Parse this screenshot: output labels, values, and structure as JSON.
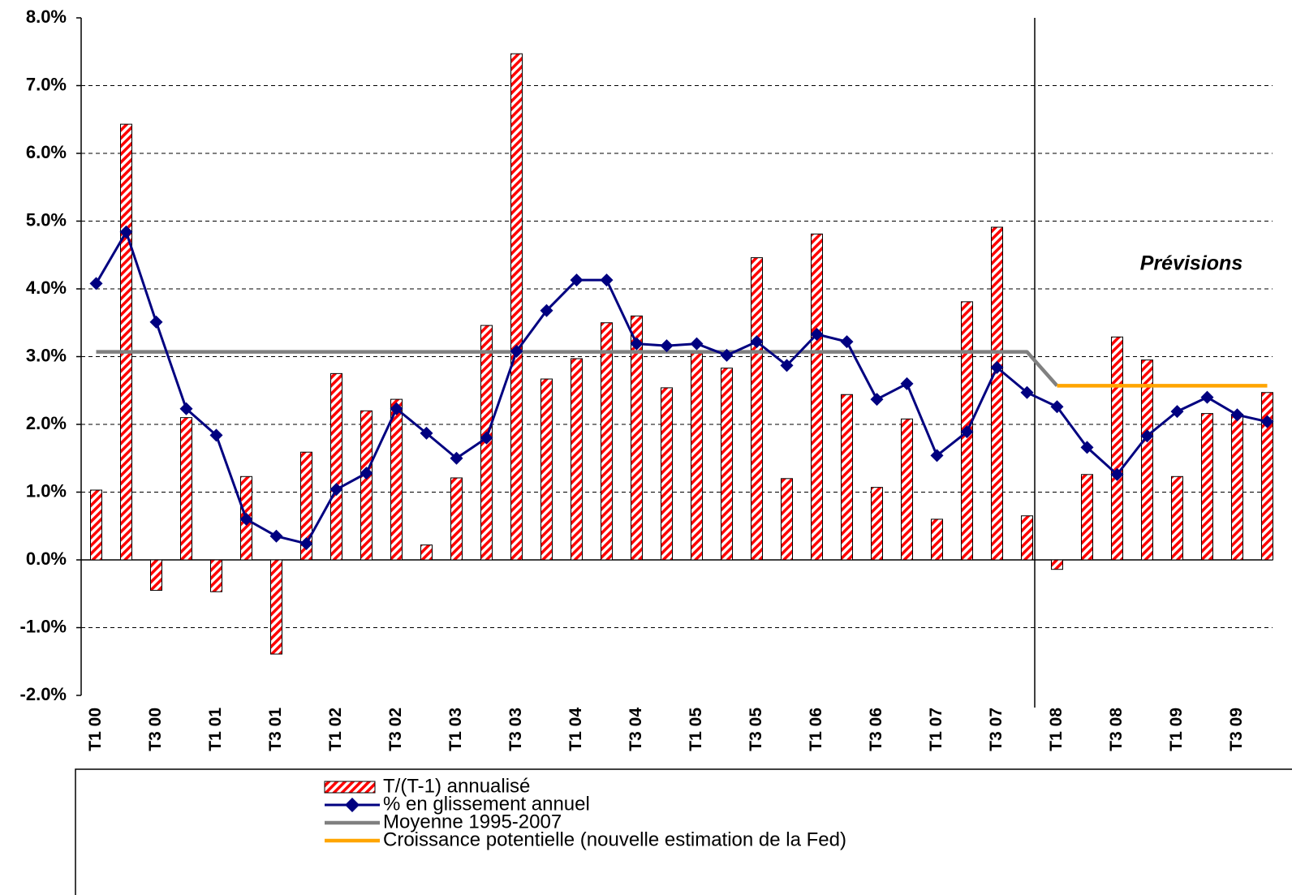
{
  "chart_data": {
    "type": "bar-line",
    "categories": [
      "T1 00",
      null,
      "T3 00",
      null,
      "T1 01",
      null,
      "T3 01",
      null,
      "T1 02",
      null,
      "T3 02",
      null,
      "T1 03",
      null,
      "T3 03",
      null,
      "T1 04",
      null,
      "T3 04",
      null,
      "T1 05",
      null,
      "T3 05",
      null,
      "T1 06",
      null,
      "T3 06",
      null,
      "T1 07",
      null,
      "T3 07",
      null,
      "T1 08",
      null,
      "T3 08",
      null,
      "T1 09",
      null,
      "T3 09",
      null
    ],
    "series": [
      {
        "name": "T/(T-1) annualisé",
        "kind": "bar",
        "color": "#ff0000",
        "values": [
          1.03,
          6.43,
          -0.45,
          2.1,
          -0.47,
          1.23,
          -1.39,
          1.59,
          2.75,
          2.2,
          2.37,
          0.22,
          1.21,
          3.46,
          7.47,
          2.67,
          2.97,
          3.5,
          3.6,
          2.54,
          3.05,
          2.83,
          4.46,
          1.2,
          4.81,
          2.44,
          1.07,
          2.08,
          0.6,
          3.81,
          4.91,
          0.65,
          -0.14,
          1.26,
          3.29,
          2.95,
          1.23,
          2.16,
          2.15,
          2.47
        ]
      },
      {
        "name": "% en glissement annuel",
        "kind": "line-marker",
        "color": "#000080",
        "values": [
          4.08,
          4.84,
          3.51,
          2.23,
          1.84,
          0.6,
          0.35,
          0.24,
          1.04,
          1.28,
          2.23,
          1.87,
          1.5,
          1.8,
          3.08,
          3.68,
          4.13,
          4.13,
          3.19,
          3.16,
          3.19,
          3.02,
          3.22,
          2.87,
          3.33,
          3.22,
          2.37,
          2.6,
          1.54,
          1.89,
          2.84,
          2.47,
          2.26,
          1.66,
          1.26,
          1.83,
          2.19,
          2.4,
          2.14,
          2.04
        ]
      },
      {
        "name": "Moyenne 1995-2007",
        "kind": "line",
        "color": "#808080",
        "values": [
          3.07,
          3.07,
          3.07,
          3.07,
          3.07,
          3.07,
          3.07,
          3.07,
          3.07,
          3.07,
          3.07,
          3.07,
          3.07,
          3.07,
          3.07,
          3.07,
          3.07,
          3.07,
          3.07,
          3.07,
          3.07,
          3.07,
          3.07,
          3.07,
          3.07,
          3.07,
          3.07,
          3.07,
          3.07,
          3.07,
          3.07,
          3.07,
          2.57,
          null,
          null,
          null,
          null,
          null,
          null,
          null
        ]
      },
      {
        "name": "Croissance potentielle (nouvelle estimation de la Fed)",
        "kind": "line",
        "color": "#ffa500",
        "values": [
          null,
          null,
          null,
          null,
          null,
          null,
          null,
          null,
          null,
          null,
          null,
          null,
          null,
          null,
          null,
          null,
          null,
          null,
          null,
          null,
          null,
          null,
          null,
          null,
          null,
          null,
          null,
          null,
          null,
          null,
          null,
          null,
          2.57,
          2.57,
          2.57,
          2.57,
          2.57,
          2.57,
          2.57,
          2.57
        ]
      }
    ],
    "annotations": [
      "Prévisions"
    ],
    "ylim": [
      -2,
      8
    ],
    "yticks": [
      {
        "value": -2,
        "label": "-2.0%"
      },
      {
        "value": -1,
        "label": "-1.0%"
      },
      {
        "value": 0,
        "label": "0.0%"
      },
      {
        "value": 1,
        "label": "1.0%"
      },
      {
        "value": 2,
        "label": "2.0%"
      },
      {
        "value": 3,
        "label": "3.0%"
      },
      {
        "value": 4,
        "label": "4.0%"
      },
      {
        "value": 5,
        "label": "5.0%"
      },
      {
        "value": 6,
        "label": "6.0%"
      },
      {
        "value": 7,
        "label": "7.0%"
      },
      {
        "value": 8,
        "label": "8.0%"
      }
    ],
    "grid": true,
    "legend": "bottom"
  }
}
